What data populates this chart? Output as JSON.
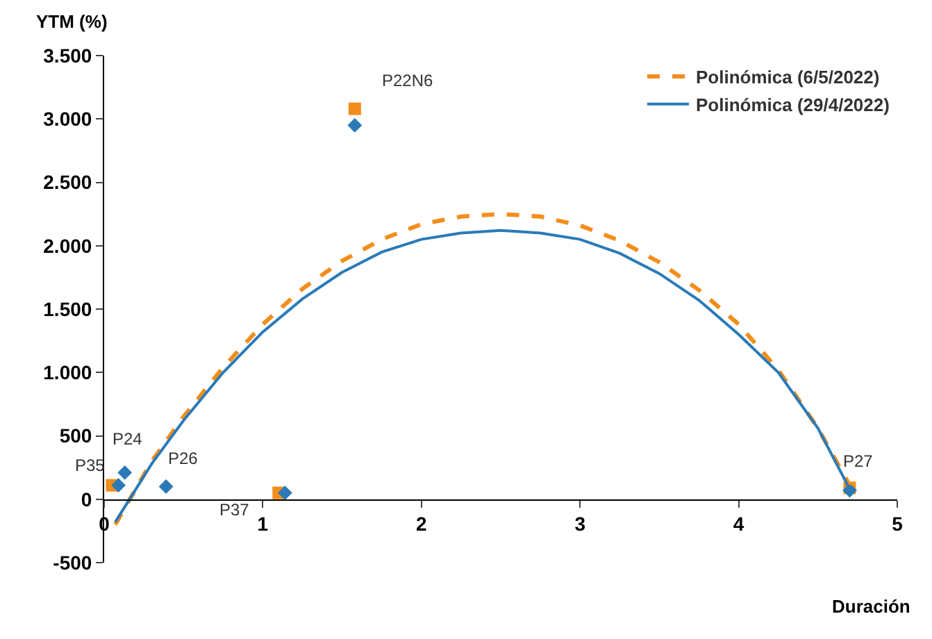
{
  "chart_data": {
    "type": "line",
    "xlabel": "Duración",
    "ylabel": "YTM (%)",
    "xlim": [
      0,
      5
    ],
    "xticks": [
      0,
      1,
      2,
      3,
      4,
      5
    ],
    "ylim": [
      -500,
      3500
    ],
    "yticks": [
      {
        "value": -500,
        "label": "-500"
      },
      0,
      {
        "value": 500,
        "label": "500"
      },
      {
        "value": 1000,
        "label": "1.000"
      },
      {
        "value": 1500,
        "label": "1.500"
      },
      {
        "value": 2000,
        "label": "2.000"
      },
      {
        "value": 2500,
        "label": "2.500"
      },
      {
        "value": 3000,
        "label": "3.000"
      },
      {
        "value": 3500,
        "label": "3.500"
      }
    ],
    "legend": "top right",
    "series": [
      {
        "type": "scatter",
        "marker": "square",
        "color": "#f28e1c",
        "x": [
          0.05,
          1.1,
          1.58,
          4.7
        ],
        "values": [
          110,
          50,
          3080,
          90
        ]
      },
      {
        "type": "scatter",
        "marker": "diamond",
        "color": "#2a7ab8",
        "x": [
          0.09,
          0.13,
          0.39,
          1.14,
          1.58,
          4.7
        ],
        "values": [
          110,
          210,
          100,
          50,
          2950,
          70
        ]
      },
      {
        "name": "Polinómica (6/5/2022)",
        "line_style": "dashed",
        "marker": "none",
        "color": "#f28e1c",
        "x": [
          0.07,
          0.3,
          0.5,
          0.75,
          1.0,
          1.25,
          1.5,
          1.75,
          2.0,
          2.25,
          2.5,
          2.75,
          3.0,
          3.25,
          3.5,
          3.75,
          4.0,
          4.25,
          4.5,
          4.7
        ],
        "values": [
          -200,
          300,
          650,
          1040,
          1380,
          1660,
          1880,
          2050,
          2170,
          2230,
          2250,
          2230,
          2160,
          2040,
          1870,
          1650,
          1380,
          1020,
          560,
          110
        ]
      },
      {
        "name": "Polinómica (29/4/2022)",
        "line_style": "solid",
        "marker": "none",
        "color": "#2a7ab8",
        "x": [
          0.07,
          0.3,
          0.5,
          0.75,
          1.0,
          1.25,
          1.5,
          1.75,
          2.0,
          2.25,
          2.5,
          2.75,
          3.0,
          3.25,
          3.5,
          3.75,
          4.0,
          4.25,
          4.5,
          4.7
        ],
        "values": [
          -180,
          280,
          620,
          1000,
          1320,
          1580,
          1790,
          1950,
          2050,
          2100,
          2120,
          2100,
          2050,
          1940,
          1780,
          1570,
          1300,
          1000,
          560,
          80
        ]
      }
    ],
    "annotations": [
      {
        "text": "P35",
        "x": 0.09,
        "y": 110
      },
      {
        "text": "P24",
        "x": 0.13,
        "y": 210
      },
      {
        "text": "P26",
        "x": 0.39,
        "y": 100
      },
      {
        "text": "P37",
        "x": 1.14,
        "y": 50
      },
      {
        "text": "P22N6",
        "x": 1.58,
        "y": 2950
      },
      {
        "text": "P27",
        "x": 4.7,
        "y": 80
      }
    ]
  }
}
